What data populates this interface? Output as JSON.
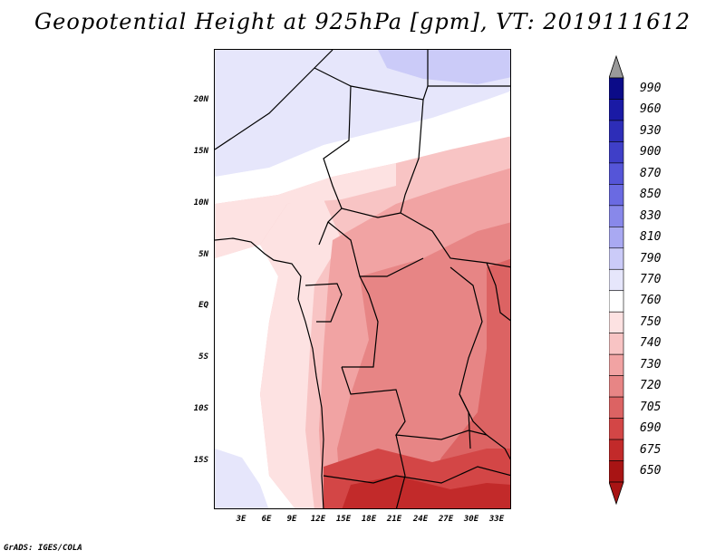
{
  "title": "Geopotential Height at 925hPa [gpm], VT: 2019111612",
  "credit": "GrADS: IGES/COLA",
  "map": {
    "variable": "Geopotential Height",
    "level": "925hPa",
    "units": "gpm",
    "valid_time": "2019111612",
    "lat_labels": [
      "20N",
      "15N",
      "10N",
      "5N",
      "EQ",
      "5S",
      "10S",
      "15S"
    ],
    "lon_labels": [
      "3E",
      "6E",
      "9E",
      "12E",
      "15E",
      "18E",
      "21E",
      "24E",
      "27E",
      "30E",
      "33E"
    ]
  },
  "colorbar": {
    "levels": [
      "990",
      "960",
      "930",
      "900",
      "870",
      "850",
      "830",
      "810",
      "790",
      "770",
      "760",
      "750",
      "740",
      "730",
      "720",
      "705",
      "690",
      "675",
      "650"
    ],
    "colors": [
      "#0b0b88",
      "#1a1aa5",
      "#2d2db8",
      "#3f3fc8",
      "#5555d8",
      "#6a6ae2",
      "#8888ea",
      "#a9a9f2",
      "#cbcbf8",
      "#e6e6fb",
      "#ffffff",
      "#fde2e2",
      "#f8c4c4",
      "#f1a3a3",
      "#e78585",
      "#dc6363",
      "#d34646",
      "#c22a2a",
      "#a81414"
    ],
    "extend_top_color": "#9a9a9a",
    "extend_bottom_color": "#a81414"
  }
}
